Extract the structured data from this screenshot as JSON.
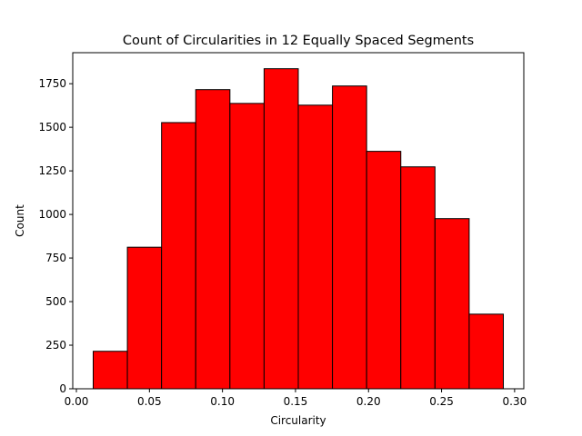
{
  "chart_data": {
    "type": "bar",
    "title": "Count of Circularities in 12 Equally Spaced Segments",
    "xlabel": "Circularity",
    "ylabel": "Count",
    "bin_edges": [
      0.0115,
      0.0349,
      0.0583,
      0.0817,
      0.1051,
      0.1285,
      0.1519,
      0.1753,
      0.1987,
      0.2221,
      0.2455,
      0.2689,
      0.2923
    ],
    "values": [
      215,
      812,
      1527,
      1716,
      1637,
      1836,
      1627,
      1737,
      1362,
      1273,
      976,
      428
    ],
    "xlim": [
      -0.0025,
      0.3063
    ],
    "ylim": [
      0,
      1928
    ],
    "x_ticks": [
      0.0,
      0.05,
      0.1,
      0.15,
      0.2,
      0.25,
      0.3
    ],
    "x_tick_labels": [
      "0.00",
      "0.05",
      "0.10",
      "0.15",
      "0.20",
      "0.25",
      "0.30"
    ],
    "y_ticks": [
      0,
      250,
      500,
      750,
      1000,
      1250,
      1500,
      1750
    ],
    "y_tick_labels": [
      "0",
      "250",
      "500",
      "750",
      "1000",
      "1250",
      "1500",
      "1750"
    ],
    "bar_color": "#ff0000",
    "edge_color": "#000000",
    "grid": false,
    "legend": "none"
  }
}
